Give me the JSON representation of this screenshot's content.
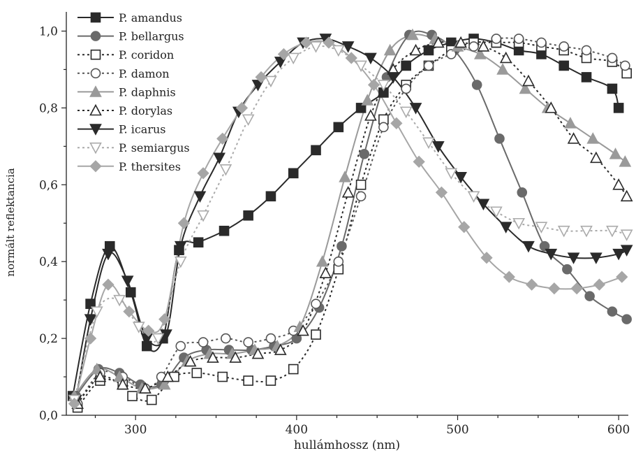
{
  "chart_data": {
    "type": "line",
    "xlabel": "hullámhossz (nm)",
    "ylabel": "normált reflektancia",
    "xlim": [
      257,
      606
    ],
    "ylim": [
      0,
      1.05
    ],
    "xticks": [
      300,
      400,
      500,
      600
    ],
    "yticks": [
      0.0,
      0.2,
      0.4,
      0.6,
      0.8,
      1.0
    ],
    "ytick_labels": [
      "0,0",
      "0,2",
      "0,4",
      "0,6",
      "0,8",
      "1,0"
    ],
    "legend_position": "top-left",
    "grid": false,
    "series": [
      {
        "name": "P. amandus",
        "color": "#2a2a2a",
        "dash": "solid",
        "marker": "square",
        "filled": true,
        "x": [
          261,
          272,
          284,
          297,
          307,
          317,
          327,
          339,
          355,
          370,
          384,
          398,
          412,
          426,
          440,
          454,
          468,
          482,
          496,
          510,
          524,
          538,
          552,
          566,
          580,
          596,
          600
        ],
        "y": [
          0.05,
          0.29,
          0.44,
          0.32,
          0.18,
          0.2,
          0.43,
          0.45,
          0.48,
          0.52,
          0.57,
          0.63,
          0.69,
          0.75,
          0.8,
          0.84,
          0.91,
          0.95,
          0.97,
          0.98,
          0.97,
          0.95,
          0.94,
          0.91,
          0.88,
          0.85,
          0.8
        ]
      },
      {
        "name": "P. bellargus",
        "color": "#6a6a6a",
        "dash": "solid",
        "marker": "circle",
        "filled": true,
        "x": [
          263,
          277,
          290,
          303,
          316,
          330,
          344,
          358,
          372,
          386,
          400,
          414,
          428,
          442,
          456,
          470,
          484,
          498,
          512,
          526,
          540,
          554,
          568,
          582,
          596,
          605
        ],
        "y": [
          0.05,
          0.12,
          0.11,
          0.08,
          0.08,
          0.15,
          0.17,
          0.17,
          0.17,
          0.18,
          0.2,
          0.28,
          0.44,
          0.68,
          0.88,
          0.99,
          0.99,
          0.95,
          0.86,
          0.72,
          0.58,
          0.44,
          0.38,
          0.31,
          0.27,
          0.25
        ]
      },
      {
        "name": "P. coridon",
        "color": "#2a2a2a",
        "dash": "3,4",
        "marker": "square",
        "filled": false,
        "x": [
          264,
          278,
          292,
          298,
          310,
          324,
          338,
          354,
          370,
          384,
          398,
          412,
          426,
          440,
          454,
          468,
          482,
          496,
          510,
          524,
          538,
          552,
          566,
          580,
          596,
          605
        ],
        "y": [
          0.02,
          0.09,
          0.08,
          0.05,
          0.04,
          0.1,
          0.11,
          0.1,
          0.09,
          0.09,
          0.12,
          0.21,
          0.38,
          0.6,
          0.77,
          0.86,
          0.91,
          0.95,
          0.97,
          0.97,
          0.97,
          0.96,
          0.95,
          0.93,
          0.92,
          0.89
        ]
      },
      {
        "name": "P. damon",
        "color": "#555555",
        "dash": "3,4",
        "marker": "circle",
        "filled": false,
        "x": [
          264,
          278,
          292,
          306,
          316,
          328,
          342,
          356,
          370,
          384,
          398,
          412,
          426,
          440,
          454,
          468,
          482,
          496,
          510,
          524,
          538,
          552,
          566,
          580,
          596,
          604
        ],
        "y": [
          0.03,
          0.11,
          0.1,
          0.07,
          0.1,
          0.18,
          0.19,
          0.2,
          0.19,
          0.2,
          0.22,
          0.29,
          0.4,
          0.57,
          0.75,
          0.85,
          0.91,
          0.94,
          0.96,
          0.98,
          0.98,
          0.97,
          0.96,
          0.95,
          0.93,
          0.91
        ]
      },
      {
        "name": "P. daphnis",
        "color": "#9a9a9a",
        "dash": "solid",
        "marker": "triangle-up",
        "filled": true,
        "x": [
          262,
          276,
          290,
          304,
          318,
          332,
          346,
          360,
          374,
          388,
          402,
          416,
          430,
          444,
          458,
          472,
          486,
          500,
          514,
          528,
          542,
          556,
          570,
          584,
          598,
          604
        ],
        "y": [
          0.05,
          0.12,
          0.1,
          0.07,
          0.08,
          0.14,
          0.16,
          0.16,
          0.17,
          0.18,
          0.23,
          0.4,
          0.62,
          0.82,
          0.95,
          0.99,
          0.98,
          0.96,
          0.94,
          0.9,
          0.85,
          0.8,
          0.76,
          0.72,
          0.68,
          0.66
        ]
      },
      {
        "name": "P. dorylas",
        "color": "#2a2a2a",
        "dash": "3,4",
        "marker": "triangle-up",
        "filled": false,
        "x": [
          264,
          278,
          292,
          306,
          320,
          334,
          348,
          362,
          376,
          390,
          404,
          418,
          432,
          446,
          460,
          474,
          488,
          502,
          516,
          530,
          544,
          558,
          572,
          586,
          600,
          605
        ],
        "y": [
          0.03,
          0.1,
          0.08,
          0.07,
          0.1,
          0.14,
          0.15,
          0.15,
          0.16,
          0.17,
          0.22,
          0.37,
          0.58,
          0.78,
          0.9,
          0.95,
          0.97,
          0.97,
          0.96,
          0.93,
          0.87,
          0.8,
          0.72,
          0.67,
          0.6,
          0.57
        ]
      },
      {
        "name": "P. icarus",
        "color": "#2a2a2a",
        "dash": "solid",
        "marker": "triangle-down",
        "filled": true,
        "x": [
          263,
          272,
          283,
          295,
          307,
          319,
          328,
          340,
          352,
          364,
          376,
          390,
          404,
          418,
          432,
          446,
          460,
          474,
          488,
          502,
          516,
          530,
          544,
          558,
          572,
          586,
          600,
          605
        ],
        "y": [
          0.04,
          0.25,
          0.42,
          0.35,
          0.2,
          0.21,
          0.44,
          0.57,
          0.67,
          0.79,
          0.86,
          0.92,
          0.97,
          0.98,
          0.96,
          0.93,
          0.88,
          0.8,
          0.7,
          0.62,
          0.55,
          0.49,
          0.44,
          0.42,
          0.41,
          0.41,
          0.42,
          0.43
        ]
      },
      {
        "name": "P. semiargus",
        "color": "#aaaaaa",
        "dash": "3,4",
        "marker": "triangle-down",
        "filled": false,
        "x": [
          262,
          276,
          290,
          302,
          314,
          328,
          342,
          356,
          370,
          384,
          398,
          412,
          426,
          440,
          454,
          468,
          482,
          496,
          510,
          524,
          538,
          552,
          566,
          580,
          596,
          605
        ],
        "y": [
          0.04,
          0.27,
          0.3,
          0.23,
          0.2,
          0.4,
          0.52,
          0.64,
          0.77,
          0.87,
          0.93,
          0.96,
          0.95,
          0.91,
          0.86,
          0.79,
          0.71,
          0.63,
          0.57,
          0.53,
          0.5,
          0.49,
          0.48,
          0.48,
          0.48,
          0.47
        ]
      },
      {
        "name": "P. thersites",
        "color": "#a6a6a6",
        "dash": "solid",
        "marker": "diamond",
        "filled": true,
        "x": [
          262,
          272,
          283,
          296,
          308,
          318,
          330,
          342,
          354,
          366,
          378,
          392,
          406,
          420,
          434,
          448,
          462,
          476,
          490,
          504,
          518,
          532,
          546,
          560,
          574,
          588,
          602
        ],
        "y": [
          0.03,
          0.2,
          0.34,
          0.27,
          0.22,
          0.25,
          0.5,
          0.63,
          0.72,
          0.8,
          0.88,
          0.94,
          0.97,
          0.97,
          0.93,
          0.86,
          0.76,
          0.66,
          0.58,
          0.49,
          0.41,
          0.36,
          0.34,
          0.33,
          0.33,
          0.34,
          0.36
        ]
      }
    ]
  }
}
